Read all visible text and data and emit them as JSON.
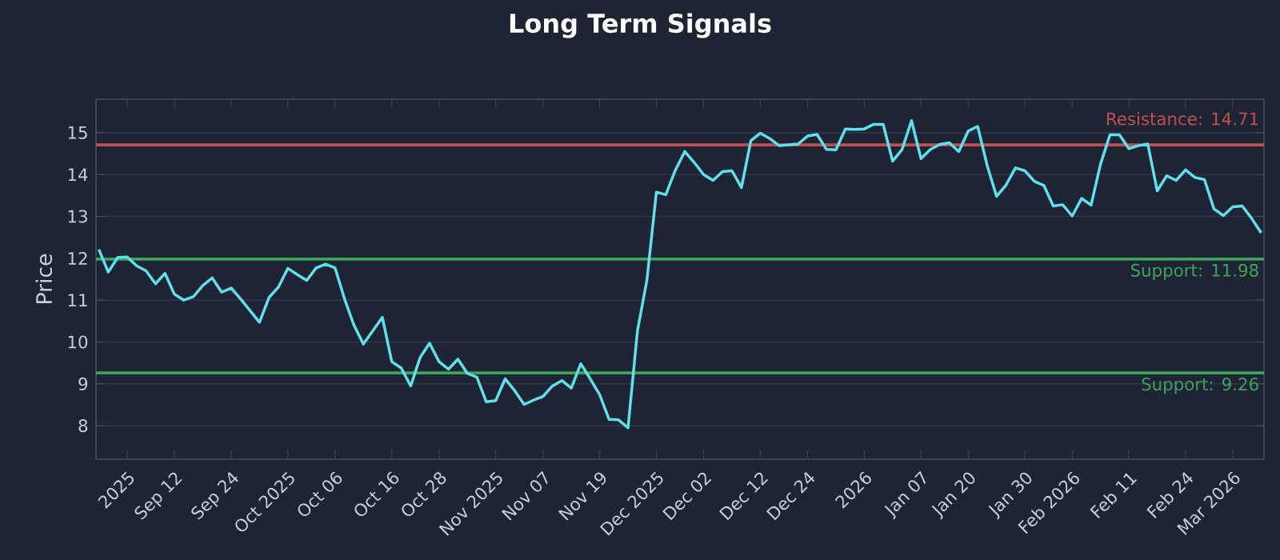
{
  "chart_data": {
    "type": "line",
    "title": "Long Term Signals",
    "ylabel": "Price",
    "categories": [
      null,
      null,
      null,
      "2025",
      null,
      null,
      null,
      null,
      "Sep 12",
      null,
      null,
      null,
      null,
      null,
      "Sep 24",
      null,
      null,
      null,
      null,
      null,
      "Oct 2025",
      null,
      null,
      null,
      null,
      "Oct 06",
      null,
      null,
      null,
      null,
      null,
      "Oct 16",
      null,
      null,
      null,
      null,
      "Oct 28",
      null,
      null,
      null,
      null,
      null,
      "Nov 2025",
      null,
      null,
      null,
      null,
      "Nov 07",
      null,
      null,
      null,
      null,
      null,
      "Nov 19",
      null,
      null,
      null,
      null,
      null,
      "Dec 2025",
      null,
      null,
      null,
      null,
      "Dec 02",
      null,
      null,
      null,
      null,
      null,
      "Dec 12",
      null,
      null,
      null,
      null,
      "Dec 24",
      null,
      null,
      null,
      null,
      null,
      "2026",
      null,
      null,
      null,
      null,
      null,
      "Jan 07",
      null,
      null,
      null,
      null,
      "Jan 20",
      null,
      null,
      null,
      null,
      null,
      "Jan 30",
      null,
      null,
      null,
      null,
      "Feb 2026",
      null,
      null,
      null,
      null,
      null,
      "Feb 11",
      null,
      null,
      null,
      null,
      null,
      "Feb 24",
      null,
      null,
      null,
      null,
      "Mar 2026",
      null,
      null,
      null
    ],
    "series": [
      {
        "color": "#5fe0ec",
        "values": [
          12.21,
          11.67,
          12.02,
          12.03,
          11.82,
          11.7,
          11.39,
          11.64,
          11.14,
          11.0,
          11.08,
          11.35,
          11.53,
          11.19,
          11.29,
          11.03,
          10.75,
          10.47,
          11.06,
          11.31,
          11.76,
          11.61,
          11.47,
          11.77,
          11.86,
          11.77,
          11.03,
          10.4,
          9.95,
          10.27,
          10.59,
          9.53,
          9.38,
          8.95,
          9.63,
          9.97,
          9.53,
          9.35,
          9.59,
          9.25,
          9.16,
          8.57,
          8.6,
          9.12,
          8.84,
          8.51,
          8.61,
          8.7,
          8.95,
          9.08,
          8.9,
          9.48,
          9.12,
          8.74,
          8.15,
          8.14,
          7.95,
          10.27,
          11.48,
          13.58,
          13.52,
          14.1,
          14.55,
          14.29,
          14.0,
          13.86,
          14.07,
          14.09,
          13.69,
          14.81,
          14.99,
          14.86,
          14.69,
          14.71,
          14.73,
          14.92,
          14.96,
          14.6,
          14.59,
          15.09,
          15.08,
          15.09,
          15.2,
          15.2,
          14.32,
          14.6,
          15.29,
          14.38,
          14.6,
          14.72,
          14.76,
          14.55,
          15.04,
          15.15,
          14.22,
          13.48,
          13.75,
          14.16,
          14.09,
          13.84,
          13.74,
          13.25,
          13.28,
          13.01,
          13.43,
          13.27,
          14.25,
          14.95,
          14.95,
          14.62,
          14.69,
          14.73,
          13.61,
          13.97,
          13.86,
          14.11,
          13.93,
          13.88,
          13.18,
          13.02,
          13.23,
          13.25,
          12.95,
          12.61
        ]
      }
    ],
    "ylim": [
      7.2,
      15.8
    ],
    "yticks": [
      8,
      9,
      10,
      11,
      12,
      13,
      14,
      15
    ],
    "ref_lines": [
      {
        "axis": "y",
        "value": 14.71,
        "label": "Resistance: 14.71",
        "color": "#c0504d"
      },
      {
        "axis": "y",
        "value": 11.98,
        "label": "Support: 11.98",
        "color": "#3da35d"
      },
      {
        "axis": "y",
        "value": 9.26,
        "label": "Support: 9.26",
        "color": "#3da35d"
      }
    ],
    "grid": "y",
    "marker": "none",
    "line_style": "solid"
  }
}
